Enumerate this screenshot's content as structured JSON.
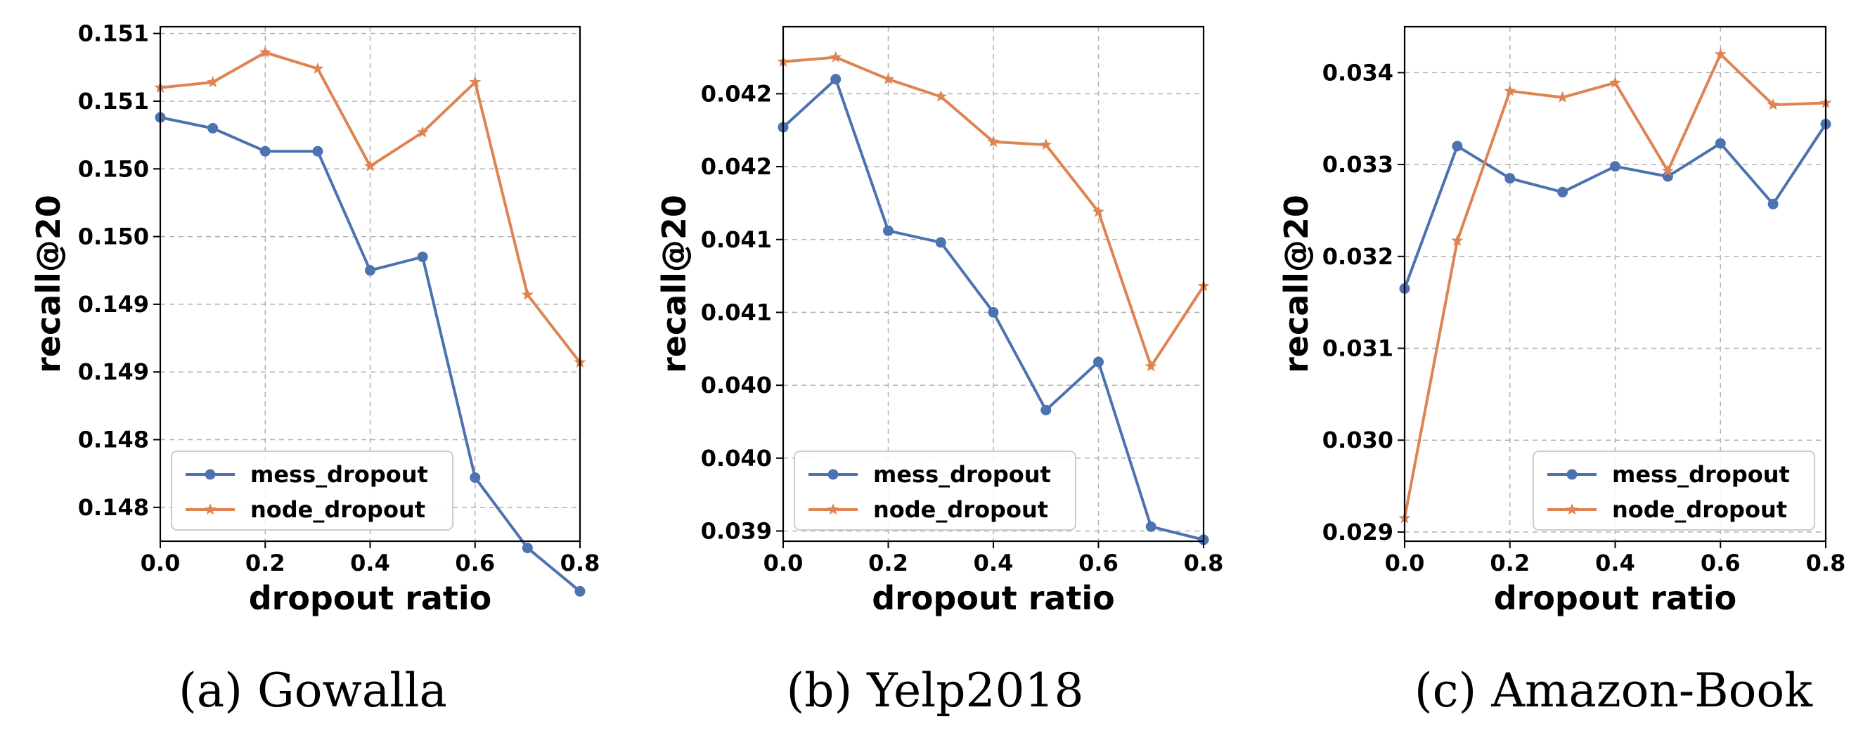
{
  "colors": {
    "mess_dropout": "#4c72b0",
    "node_dropout": "#dd8452"
  },
  "chart_data": [
    {
      "type": "line",
      "caption": "(a)  Gowalla",
      "xlabel": "dropout ratio",
      "ylabel": "recall@20",
      "xlim": [
        0.0,
        0.8
      ],
      "ylim": [
        0.14775,
        0.15155
      ],
      "x_ticks": [
        0.0,
        0.2,
        0.4,
        0.6,
        0.8
      ],
      "x_tick_labels": [
        "0.0",
        "0.2",
        "0.4",
        "0.6",
        "0.8"
      ],
      "y_ticks": [
        0.148,
        0.1485,
        0.149,
        0.1495,
        0.15,
        0.1505,
        0.151,
        0.1515
      ],
      "y_tick_labels": [
        "0.148",
        "0.148",
        "0.149",
        "0.149",
        "0.150",
        "0.150",
        "0.151",
        "0.151"
      ],
      "grid": true,
      "legend_position": "lower-left",
      "x": [
        0.0,
        0.1,
        0.2,
        0.3,
        0.4,
        0.5,
        0.6,
        0.7,
        0.8
      ],
      "series": [
        {
          "name": "mess_dropout",
          "marker": "circle",
          "values": [
            0.15088,
            0.1508,
            0.15063,
            0.15063,
            0.14975,
            0.14985,
            0.14822,
            0.1477,
            0.14738
          ]
        },
        {
          "name": "node_dropout",
          "marker": "star",
          "values": [
            0.1511,
            0.15114,
            0.15136,
            0.15124,
            0.15052,
            0.15077,
            0.15114,
            0.14957,
            0.14907
          ]
        }
      ]
    },
    {
      "type": "line",
      "caption": "(b)  Yelp2018",
      "xlabel": "dropout ratio",
      "ylabel": "recall@20",
      "xlim": [
        0.0,
        0.8
      ],
      "ylim": [
        0.03893,
        0.04246
      ],
      "x_ticks": [
        0.0,
        0.2,
        0.4,
        0.6,
        0.8
      ],
      "x_tick_labels": [
        "0.0",
        "0.2",
        "0.4",
        "0.6",
        "0.8"
      ],
      "y_ticks": [
        0.039,
        0.0395,
        0.04,
        0.0405,
        0.041,
        0.0415,
        0.042
      ],
      "y_tick_labels": [
        "0.039",
        "0.040",
        "0.040",
        "0.041",
        "0.041",
        "0.042",
        "0.042"
      ],
      "grid": true,
      "legend_position": "lower-left",
      "x": [
        0.0,
        0.1,
        0.2,
        0.3,
        0.4,
        0.5,
        0.6,
        0.7,
        0.8
      ],
      "series": [
        {
          "name": "mess_dropout",
          "marker": "circle",
          "values": [
            0.04177,
            0.0421,
            0.04106,
            0.04098,
            0.0405,
            0.03983,
            0.04016,
            0.03903,
            0.03894
          ]
        },
        {
          "name": "node_dropout",
          "marker": "star",
          "values": [
            0.04222,
            0.04225,
            0.0421,
            0.04198,
            0.04167,
            0.04165,
            0.04119,
            0.04013,
            0.04068
          ]
        }
      ]
    },
    {
      "type": "line",
      "caption": "(c)  Amazon-Book",
      "xlabel": "dropout ratio",
      "ylabel": "recall@20",
      "xlim": [
        0.0,
        0.8
      ],
      "ylim": [
        0.0289,
        0.0345
      ],
      "x_ticks": [
        0.0,
        0.2,
        0.4,
        0.6,
        0.8
      ],
      "x_tick_labels": [
        "0.0",
        "0.2",
        "0.4",
        "0.6",
        "0.8"
      ],
      "y_ticks": [
        0.029,
        0.03,
        0.031,
        0.032,
        0.033,
        0.034
      ],
      "y_tick_labels": [
        "0.029",
        "0.030",
        "0.031",
        "0.032",
        "0.033",
        "0.034"
      ],
      "grid": true,
      "legend_position": "lower-right",
      "x": [
        0.0,
        0.1,
        0.2,
        0.3,
        0.4,
        0.5,
        0.6,
        0.7,
        0.8
      ],
      "series": [
        {
          "name": "mess_dropout",
          "marker": "circle",
          "values": [
            0.03165,
            0.0332,
            0.03285,
            0.0327,
            0.03298,
            0.03287,
            0.03323,
            0.03257,
            0.03344
          ]
        },
        {
          "name": "node_dropout",
          "marker": "star",
          "values": [
            0.02915,
            0.03217,
            0.0338,
            0.03373,
            0.03389,
            0.03293,
            0.0342,
            0.03365,
            0.03367
          ]
        }
      ]
    }
  ]
}
